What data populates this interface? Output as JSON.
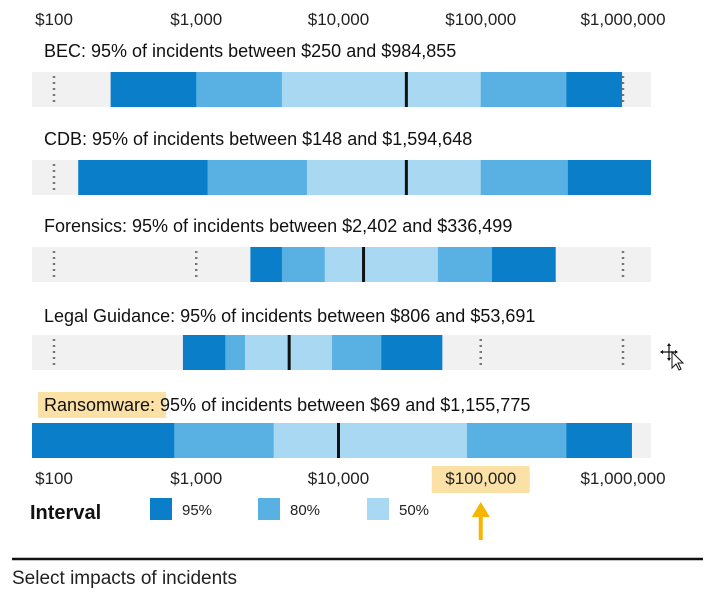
{
  "chart_data": {
    "type": "bar",
    "subtype": "log-scale range bars",
    "x_scale": "log",
    "xlim": [
      100,
      1000000
    ],
    "ticks": [
      {
        "value": 100,
        "label": "$100"
      },
      {
        "value": 1000,
        "label": "$1,000"
      },
      {
        "value": 10000,
        "label": "$10,000"
      },
      {
        "value": 100000,
        "label": "$100,000"
      },
      {
        "value": 1000000,
        "label": "$1,000,000"
      }
    ],
    "highlighted_tick": "$100,000",
    "rows": [
      {
        "title": "BEC: 95% of incidents between $250 and $984,855",
        "highlight": "",
        "interval_95": [
          250,
          984855
        ],
        "interval_80": [
          1000,
          400000
        ],
        "interval_50": [
          4000,
          100000
        ],
        "median": 30000
      },
      {
        "title": "CDB: 95% of incidents between $148 and $1,594,648",
        "highlight": "",
        "interval_95": [
          148,
          1594648
        ],
        "interval_80": [
          1200,
          410000
        ],
        "interval_50": [
          6000,
          100000
        ],
        "median": 30000
      },
      {
        "title": "Forensics: 95% of incidents between $2,402 and $336,499",
        "highlight": "",
        "interval_95": [
          2402,
          336499
        ],
        "interval_80": [
          4000,
          120000
        ],
        "interval_50": [
          8000,
          50000
        ],
        "median": 15000
      },
      {
        "title": "Legal Guidance: 95% of incidents between $806 and $53,691",
        "highlight": "",
        "interval_95": [
          806,
          53691
        ],
        "interval_80": [
          1600,
          20000
        ],
        "interval_50": [
          2200,
          9000
        ],
        "median": 4500
      },
      {
        "title": "Ransomware: 95% of incidents between $69 and $1,155,775",
        "highlight": "Ransomware:",
        "interval_95": [
          69,
          1155775
        ],
        "interval_80": [
          700,
          400000
        ],
        "interval_50": [
          3500,
          80000
        ],
        "median": 10000
      }
    ],
    "legend": {
      "title": "Interval",
      "items": [
        {
          "label": "95%",
          "color": "#0a7ec8"
        },
        {
          "label": "80%",
          "color": "#58b1e2"
        },
        {
          "label": "50%",
          "color": "#a8d8f2"
        }
      ]
    },
    "caption": "Select impacts of incidents"
  },
  "colors": {
    "highlight": "#fbe1a6",
    "arrow": "#f7b500",
    "track": "#f1f1f1"
  }
}
